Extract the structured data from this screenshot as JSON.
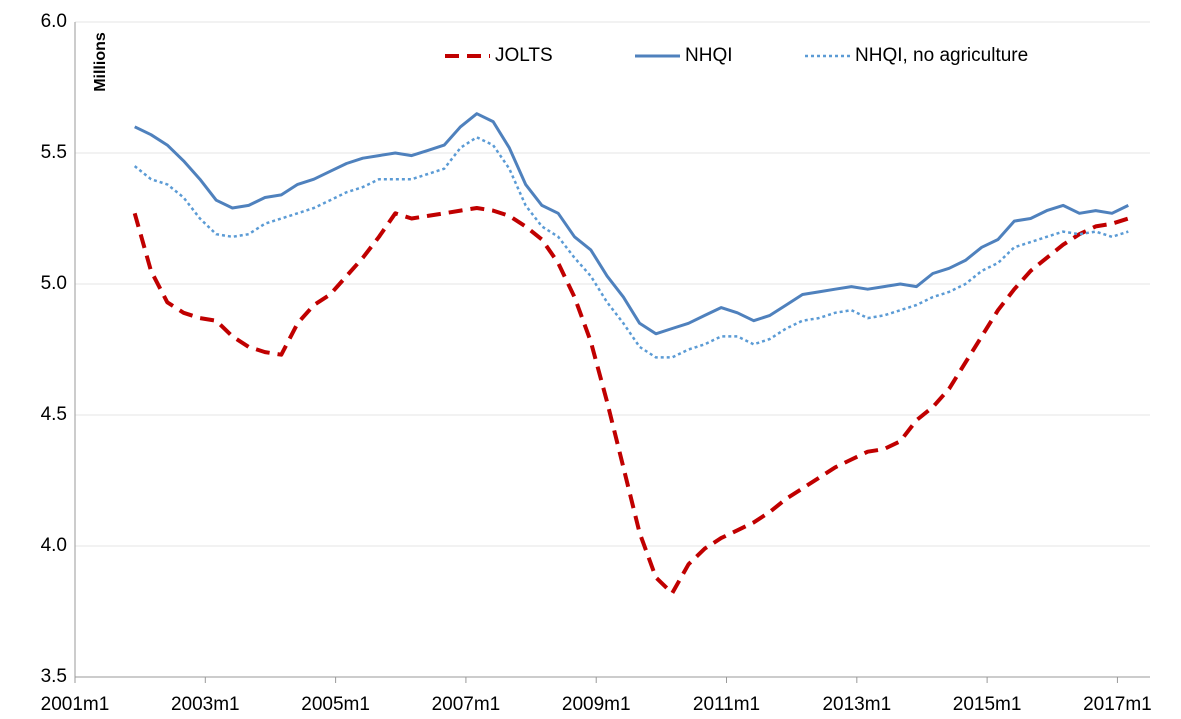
{
  "chart_data": {
    "type": "line",
    "y_label": "Millions",
    "x": [
      "2001m12",
      "2002m3",
      "2002m6",
      "2002m9",
      "2002m12",
      "2003m3",
      "2003m6",
      "2003m9",
      "2003m12",
      "2004m3",
      "2004m6",
      "2004m9",
      "2004m12",
      "2005m3",
      "2005m6",
      "2005m9",
      "2005m12",
      "2006m3",
      "2006m6",
      "2006m9",
      "2006m12",
      "2007m3",
      "2007m6",
      "2007m9",
      "2007m12",
      "2008m3",
      "2008m6",
      "2008m9",
      "2008m12",
      "2009m3",
      "2009m6",
      "2009m9",
      "2009m12",
      "2010m3",
      "2010m6",
      "2010m9",
      "2010m12",
      "2011m3",
      "2011m6",
      "2011m9",
      "2011m12",
      "2012m3",
      "2012m6",
      "2012m9",
      "2012m12",
      "2013m3",
      "2013m6",
      "2013m9",
      "2013m12",
      "2014m3",
      "2014m6",
      "2014m9",
      "2014m12",
      "2015m3",
      "2015m6",
      "2015m9",
      "2015m12",
      "2016m3",
      "2016m6",
      "2016m9",
      "2016m12",
      "2017m3"
    ],
    "series": [
      {
        "name": "JOLTS",
        "color": "#c00000",
        "style": "dashed",
        "values": [
          5.27,
          5.05,
          4.93,
          4.89,
          4.87,
          4.86,
          4.8,
          4.76,
          4.74,
          4.73,
          4.85,
          4.92,
          4.96,
          5.03,
          5.1,
          5.18,
          5.27,
          5.25,
          5.26,
          5.27,
          5.28,
          5.29,
          5.28,
          5.26,
          5.22,
          5.17,
          5.08,
          4.95,
          4.78,
          4.55,
          4.3,
          4.05,
          3.88,
          3.82,
          3.93,
          3.99,
          4.03,
          4.06,
          4.09,
          4.13,
          4.18,
          4.22,
          4.26,
          4.3,
          4.33,
          4.36,
          4.37,
          4.4,
          4.48,
          4.53,
          4.6,
          4.7,
          4.8,
          4.9,
          4.98,
          5.05,
          5.1,
          5.15,
          5.19,
          5.22,
          5.23,
          5.25
        ]
      },
      {
        "name": "NHQI",
        "color": "#4f81bd",
        "style": "solid",
        "values": [
          5.6,
          5.57,
          5.53,
          5.47,
          5.4,
          5.32,
          5.29,
          5.3,
          5.33,
          5.34,
          5.38,
          5.4,
          5.43,
          5.46,
          5.48,
          5.49,
          5.5,
          5.49,
          5.51,
          5.53,
          5.6,
          5.65,
          5.62,
          5.52,
          5.38,
          5.3,
          5.27,
          5.18,
          5.13,
          5.03,
          4.95,
          4.85,
          4.81,
          4.83,
          4.85,
          4.88,
          4.91,
          4.89,
          4.86,
          4.88,
          4.92,
          4.96,
          4.97,
          4.98,
          4.99,
          4.98,
          4.99,
          5.0,
          4.99,
          5.04,
          5.06,
          5.09,
          5.14,
          5.17,
          5.24,
          5.25,
          5.28,
          5.3,
          5.27,
          5.28,
          5.27,
          5.3
        ]
      },
      {
        "name": "NHQI, no agriculture",
        "color": "#5b9bd5",
        "style": "dotted",
        "values": [
          5.45,
          5.4,
          5.38,
          5.33,
          5.25,
          5.19,
          5.18,
          5.19,
          5.23,
          5.25,
          5.27,
          5.29,
          5.32,
          5.35,
          5.37,
          5.4,
          5.4,
          5.4,
          5.42,
          5.44,
          5.52,
          5.56,
          5.53,
          5.44,
          5.3,
          5.22,
          5.18,
          5.1,
          5.03,
          4.93,
          4.85,
          4.76,
          4.72,
          4.72,
          4.75,
          4.77,
          4.8,
          4.8,
          4.77,
          4.79,
          4.83,
          4.86,
          4.87,
          4.89,
          4.9,
          4.87,
          4.88,
          4.9,
          4.92,
          4.95,
          4.97,
          5.0,
          5.05,
          5.08,
          5.14,
          5.16,
          5.18,
          5.2,
          5.19,
          5.2,
          5.18,
          5.2
        ]
      }
    ],
    "xlim": [
      "2001m1",
      "2017m7"
    ],
    "xticks": [
      "2001m1",
      "2003m1",
      "2005m1",
      "2007m1",
      "2009m1",
      "2011m1",
      "2013m1",
      "2015m1",
      "2017m1"
    ],
    "ylim": [
      3.5,
      6.0
    ],
    "yticks": [
      3.5,
      {
        "value": 4,
        "label": "4.0"
      },
      4.5,
      {
        "value": 5,
        "label": "5.0"
      },
      5.5,
      {
        "value": 6,
        "label": "6.0"
      }
    ],
    "grid": true,
    "legend": "top"
  }
}
